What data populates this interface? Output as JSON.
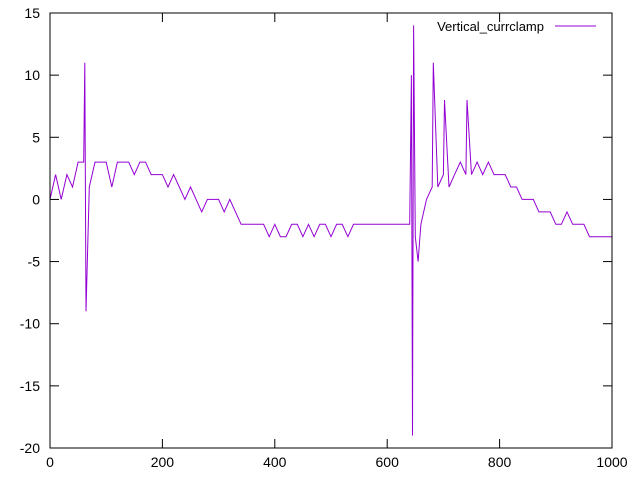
{
  "chart_data": {
    "type": "line",
    "title": "",
    "xlabel": "",
    "ylabel": "",
    "xlim": [
      0,
      1000
    ],
    "ylim": [
      -20,
      15
    ],
    "x_ticks": [
      "0",
      "200",
      "400",
      "600",
      "800",
      "1000"
    ],
    "y_ticks": [
      "15",
      "10",
      "5",
      "0",
      "-5",
      "-10",
      "-15",
      "-20"
    ],
    "grid": false,
    "legend_position": "top-right",
    "colors": {
      "series": "#9400d3",
      "axis": "#000000",
      "background": "#ffffff"
    },
    "series": [
      {
        "name": "Vertical_currclamp",
        "x": [
          0,
          10,
          20,
          30,
          40,
          50,
          60,
          62,
          64,
          70,
          80,
          90,
          100,
          110,
          120,
          130,
          140,
          150,
          160,
          170,
          180,
          190,
          200,
          210,
          220,
          230,
          240,
          250,
          260,
          270,
          280,
          290,
          300,
          310,
          320,
          330,
          340,
          350,
          360,
          370,
          380,
          390,
          400,
          410,
          420,
          430,
          440,
          450,
          460,
          470,
          480,
          490,
          500,
          510,
          520,
          530,
          540,
          550,
          560,
          570,
          580,
          590,
          600,
          610,
          620,
          630,
          640,
          643,
          645,
          647,
          650,
          655,
          660,
          670,
          680,
          682,
          690,
          700,
          702,
          710,
          720,
          730,
          740,
          742,
          750,
          760,
          770,
          780,
          790,
          800,
          810,
          820,
          830,
          840,
          850,
          860,
          870,
          880,
          890,
          900,
          910,
          920,
          930,
          940,
          950,
          960,
          970,
          980,
          990,
          1000
        ],
        "y": [
          0,
          2,
          0,
          2,
          1,
          3,
          3,
          11,
          -9,
          1,
          3,
          3,
          3,
          1,
          3,
          3,
          3,
          2,
          3,
          3,
          2,
          2,
          2,
          1,
          2,
          1,
          0,
          1,
          0,
          -1,
          0,
          0,
          0,
          -1,
          0,
          -1,
          -2,
          -2,
          -2,
          -2,
          -2,
          -3,
          -2,
          -3,
          -3,
          -2,
          -2,
          -3,
          -2,
          -3,
          -2,
          -2,
          -3,
          -2,
          -2,
          -3,
          -2,
          -2,
          -2,
          -2,
          -2,
          -2,
          -2,
          -2,
          -2,
          -2,
          -2,
          10,
          -19,
          14,
          -3,
          -5,
          -2,
          0,
          1,
          11,
          1,
          2,
          8,
          1,
          2,
          3,
          2,
          8,
          2,
          3,
          2,
          3,
          2,
          2,
          2,
          1,
          1,
          0,
          0,
          0,
          -1,
          -1,
          -1,
          -2,
          -2,
          -1,
          -2,
          -2,
          -2,
          -3,
          -3,
          -3,
          -3,
          -3
        ]
      }
    ]
  }
}
